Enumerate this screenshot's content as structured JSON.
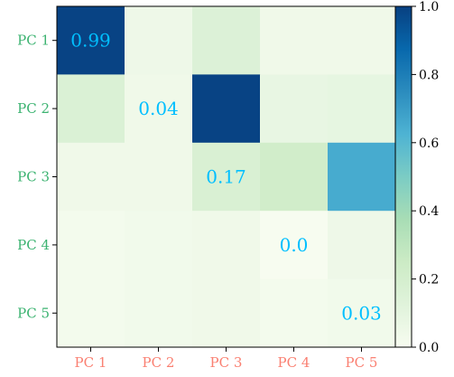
{
  "chart_data": {
    "type": "heatmap",
    "title": "",
    "xlabel": "",
    "ylabel": "",
    "x_categories": [
      "PC 1",
      "PC 2",
      "PC 3",
      "PC 4",
      "PC 5"
    ],
    "y_categories": [
      "PC 1",
      "PC 2",
      "PC 3",
      "PC 4",
      "PC 5"
    ],
    "values": [
      [
        0.99,
        0.05,
        0.15,
        0.04,
        0.04
      ],
      [
        0.16,
        0.04,
        0.99,
        0.08,
        0.09
      ],
      [
        0.04,
        0.04,
        0.17,
        0.22,
        0.65
      ],
      [
        0.02,
        0.03,
        0.04,
        0.0,
        0.05
      ],
      [
        0.02,
        0.03,
        0.04,
        0.02,
        0.03
      ]
    ],
    "cell_labels": [
      {
        "row": 0,
        "col": 0,
        "text": "0.99"
      },
      {
        "row": 1,
        "col": 1,
        "text": "0.04"
      },
      {
        "row": 2,
        "col": 2,
        "text": "0.17"
      },
      {
        "row": 3,
        "col": 3,
        "text": "0.0"
      },
      {
        "row": 4,
        "col": 4,
        "text": "0.03"
      }
    ],
    "colormap": "GnBu",
    "colorbar": {
      "range": [
        0.0,
        1.0
      ],
      "ticks": [
        "0.0",
        "0.2",
        "0.4",
        "0.6",
        "0.8",
        "1.0"
      ]
    },
    "colors": {
      "x_tick_labels": "#fa8072",
      "y_tick_labels": "#3cb371",
      "cell_labels": "#00bfff"
    }
  }
}
